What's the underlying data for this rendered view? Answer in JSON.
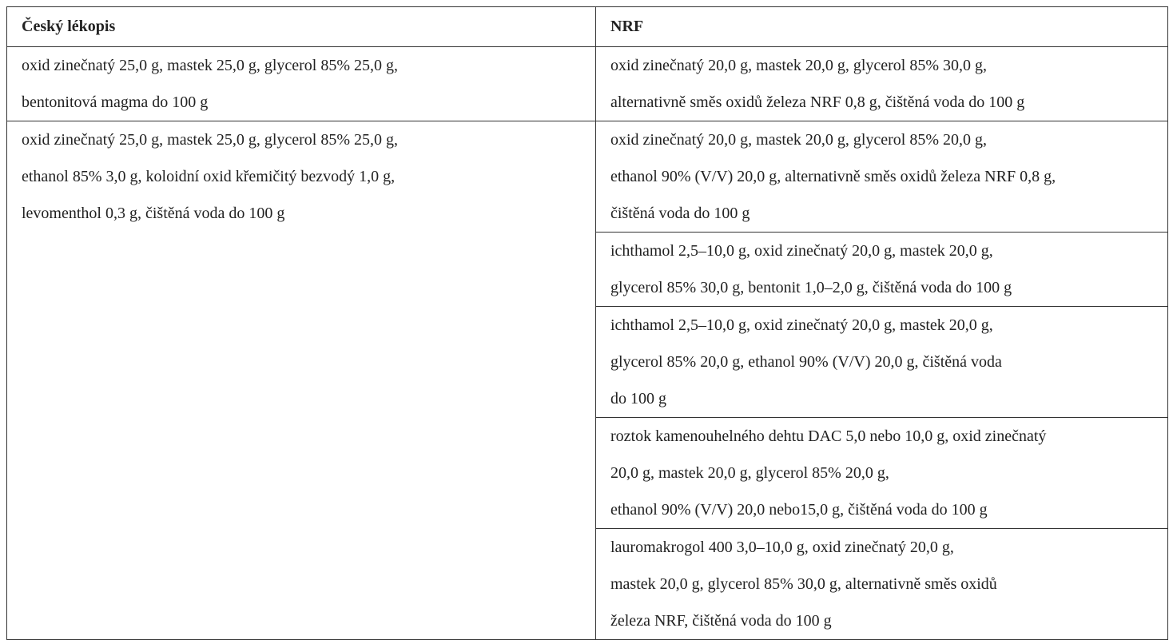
{
  "table": {
    "header": [
      "Český lékopis",
      "NRF"
    ],
    "left": [
      [
        "oxid zinečnatý 25,0 g, mastek 25,0 g, glycerol 85% 25,0 g,",
        "bentonitová magma do 100 g"
      ],
      [
        "oxid zinečnatý 25,0 g, mastek 25,0 g, glycerol 85% 25,0 g,",
        "ethanol 85% 3,0 g, koloidní oxid křemičitý bezvodý 1,0 g,",
        "levomenthol 0,3 g, čištěná voda do 100 g"
      ]
    ],
    "right": [
      [
        "oxid zinečnatý 20,0 g, mastek 20,0 g, glycerol 85% 30,0 g,",
        "alternativně směs oxidů železa NRF 0,8 g, čištěná voda do 100 g"
      ],
      [
        "oxid zinečnatý 20,0 g, mastek 20,0 g, glycerol 85% 20,0 g,",
        "ethanol 90% (V/V) 20,0 g, alternativně směs oxidů železa NRF 0,8 g,",
        "čištěná voda do 100 g"
      ],
      [
        "ichthamol 2,5–10,0 g, oxid zinečnatý 20,0 g, mastek 20,0 g,",
        "glycerol 85% 30,0 g, bentonit 1,0–2,0 g, čištěná voda do 100 g"
      ],
      [
        "ichthamol 2,5–10,0 g, oxid zinečnatý 20,0 g, mastek 20,0 g,",
        "glycerol 85% 20,0 g, ethanol 90% (V/V) 20,0 g, čištěná voda",
        "do 100 g"
      ],
      [
        "roztok kamenouhelného dehtu DAC 5,0 nebo 10,0 g, oxid zinečnatý",
        "20,0 g, mastek 20,0 g, glycerol 85% 20,0 g,",
        "ethanol 90% (V/V) 20,0 nebo15,0 g, čištěná voda do 100 g"
      ],
      [
        "lauromakrogol 400 3,0–10,0 g, oxid zinečnatý 20,0 g,",
        "mastek 20,0 g, glycerol 85% 30,0 g, alternativně směs oxidů",
        "železa NRF, čištěná voda do 100 g"
      ]
    ]
  }
}
